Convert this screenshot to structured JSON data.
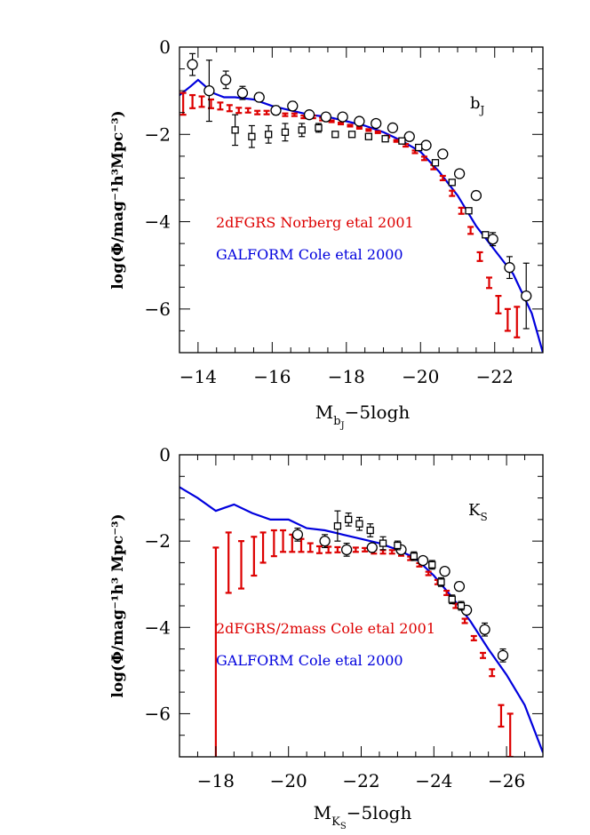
{
  "chart_data": [
    {
      "type": "line",
      "panel_label": "b",
      "panel_label_sub": "J",
      "xlabel_main": "M",
      "xlabel_sub": "b",
      "xlabel_subsub": "J",
      "xlabel_suffix": "−5logh",
      "ylabel": "log(Φ/mag⁻¹h³Mpc⁻³)",
      "xlim": [
        -13.5,
        -23.3
      ],
      "ylim": [
        -7,
        0
      ],
      "xticks": [
        -14,
        -16,
        -18,
        -20,
        -22
      ],
      "xtick_labels": [
        "−14",
        "−16",
        "−18",
        "−20",
        "−22"
      ],
      "yticks": [
        0,
        -2,
        -4,
        -6
      ],
      "ytick_labels": [
        "0",
        "−2",
        "−4",
        "−6"
      ],
      "annotations": [
        {
          "text": "2dFGRS Norberg etal 2001",
          "color": "#dd0000"
        },
        {
          "text": "GALFORM Cole etal 2000",
          "color": "#0000dd"
        }
      ],
      "series": [
        {
          "marker": "line",
          "color": "#0000dd",
          "x": [
            -13.5,
            -13.8,
            -14.0,
            -14.2,
            -14.4,
            -14.7,
            -15.0,
            -15.5,
            -16.0,
            -16.5,
            -17.0,
            -17.5,
            -18.0,
            -18.5,
            -19.0,
            -19.5,
            -20.0,
            -20.5,
            -21.0,
            -21.5,
            -22.0,
            -22.5,
            -23.0,
            -23.3
          ],
          "y": [
            -1.1,
            -0.9,
            -0.75,
            -0.9,
            -1.05,
            -1.15,
            -1.15,
            -1.2,
            -1.35,
            -1.45,
            -1.55,
            -1.6,
            -1.7,
            -1.8,
            -1.95,
            -2.15,
            -2.4,
            -2.85,
            -3.4,
            -4.1,
            -4.65,
            -5.2,
            -6.1,
            -7.0
          ]
        },
        {
          "marker": "errorbar",
          "color": "#dd0000",
          "x": [
            -13.6,
            -13.85,
            -14.1,
            -14.35,
            -14.6,
            -14.85,
            -15.1,
            -15.35,
            -15.6,
            -15.85,
            -16.1,
            -16.35,
            -16.6,
            -16.85,
            -17.1,
            -17.35,
            -17.6,
            -17.85,
            -18.1,
            -18.35,
            -18.6,
            -18.85,
            -19.1,
            -19.35,
            -19.6,
            -19.85,
            -20.1,
            -20.35,
            -20.6,
            -20.85,
            -21.1,
            -21.35,
            -21.6,
            -21.85,
            -22.1,
            -22.35,
            -22.6
          ],
          "y": [
            -1.3,
            -1.25,
            -1.25,
            -1.3,
            -1.35,
            -1.4,
            -1.45,
            -1.45,
            -1.5,
            -1.5,
            -1.5,
            -1.55,
            -1.55,
            -1.6,
            -1.6,
            -1.65,
            -1.7,
            -1.75,
            -1.8,
            -1.85,
            -1.9,
            -1.95,
            -2.05,
            -2.15,
            -2.25,
            -2.4,
            -2.55,
            -2.75,
            -3.0,
            -3.35,
            -3.75,
            -4.2,
            -4.8,
            -5.4,
            -5.9,
            -6.25,
            -6.3
          ],
          "err": [
            0.25,
            0.15,
            0.12,
            0.1,
            0.08,
            0.07,
            0.06,
            0.05,
            0.04,
            0.04,
            0.03,
            0.03,
            0.03,
            0.03,
            0.03,
            0.03,
            0.02,
            0.02,
            0.02,
            0.02,
            0.02,
            0.02,
            0.02,
            0.02,
            0.03,
            0.03,
            0.04,
            0.05,
            0.05,
            0.06,
            0.07,
            0.08,
            0.1,
            0.12,
            0.2,
            0.25,
            0.35
          ]
        },
        {
          "marker": "circle",
          "color": "#000000",
          "x": [
            -13.85,
            -14.3,
            -14.75,
            -15.2,
            -15.65,
            -16.1,
            -16.55,
            -17.0,
            -17.45,
            -17.9,
            -18.35,
            -18.8,
            -19.25,
            -19.7,
            -20.15,
            -20.6,
            -21.05,
            -21.5,
            -21.95,
            -22.4,
            -22.85
          ],
          "y": [
            -0.4,
            -1.0,
            -0.75,
            -1.05,
            -1.15,
            -1.45,
            -1.35,
            -1.55,
            -1.6,
            -1.6,
            -1.7,
            -1.75,
            -1.85,
            -2.05,
            -2.25,
            -2.45,
            -2.9,
            -3.4,
            -4.4,
            -5.05,
            -5.7
          ],
          "err": [
            0.25,
            0.7,
            0.2,
            0.15,
            0.1,
            0.1,
            0.1,
            0.05,
            0.05,
            0.05,
            0.05,
            0.05,
            0.05,
            0.05,
            0.05,
            0.05,
            0.08,
            0.1,
            0.15,
            0.25,
            0.75
          ]
        },
        {
          "marker": "square",
          "color": "#000000",
          "x": [
            -15.0,
            -15.45,
            -15.9,
            -16.35,
            -16.8,
            -17.25,
            -17.7,
            -18.15,
            -18.6,
            -19.05,
            -19.5,
            -19.95,
            -20.4,
            -20.85,
            -21.3,
            -21.75
          ],
          "y": [
            -1.9,
            -2.05,
            -2.0,
            -1.95,
            -1.9,
            -1.85,
            -2.0,
            -2.0,
            -2.05,
            -2.1,
            -2.15,
            -2.3,
            -2.65,
            -3.1,
            -3.75,
            -4.3
          ],
          "err": [
            0.35,
            0.25,
            0.2,
            0.2,
            0.15,
            0.1,
            0.05,
            0.05,
            0.05,
            0.05,
            0.05,
            0.05,
            0.05,
            0.05,
            0.05,
            0.05
          ]
        }
      ]
    },
    {
      "type": "line",
      "panel_label": "K",
      "panel_label_sub": "S",
      "xlabel_main": "M",
      "xlabel_sub": "K",
      "xlabel_subsub": "S",
      "xlabel_suffix": "−5logh",
      "ylabel": "log(Φ/mag⁻¹h³ Mpc⁻³)",
      "xlim": [
        -17,
        -27
      ],
      "ylim": [
        -7,
        0
      ],
      "xticks": [
        -18,
        -20,
        -22,
        -24,
        -26
      ],
      "xtick_labels": [
        "−18",
        "−20",
        "−22",
        "−24",
        "−26"
      ],
      "yticks": [
        0,
        -2,
        -4,
        -6
      ],
      "ytick_labels": [
        "0",
        "−2",
        "−4",
        "−6"
      ],
      "annotations": [
        {
          "text": "2dFGRS/2mass Cole etal 2001",
          "color": "#dd0000"
        },
        {
          "text": "GALFORM Cole etal 2000",
          "color": "#0000dd"
        }
      ],
      "series": [
        {
          "marker": "line",
          "color": "#0000dd",
          "x": [
            -17.0,
            -17.5,
            -18.0,
            -18.5,
            -19.0,
            -19.5,
            -20.0,
            -20.5,
            -21.0,
            -21.5,
            -22.0,
            -22.5,
            -23.0,
            -23.5,
            -24.0,
            -24.5,
            -25.0,
            -25.5,
            -26.0,
            -26.5,
            -27.0
          ],
          "y": [
            -0.75,
            -1.0,
            -1.3,
            -1.15,
            -1.35,
            -1.5,
            -1.5,
            -1.7,
            -1.75,
            -1.85,
            -1.95,
            -2.05,
            -2.2,
            -2.4,
            -2.8,
            -3.3,
            -3.85,
            -4.5,
            -5.1,
            -5.8,
            -6.9
          ]
        },
        {
          "marker": "errorbar",
          "color": "#dd0000",
          "x": [
            -18.0,
            -18.35,
            -18.7,
            -19.05,
            -19.3,
            -19.6,
            -19.85,
            -20.1,
            -20.35,
            -20.6,
            -20.85,
            -21.1,
            -21.35,
            -21.6,
            -21.85,
            -22.1,
            -22.35,
            -22.6,
            -22.85,
            -23.1,
            -23.35,
            -23.6,
            -23.85,
            -24.1,
            -24.35,
            -24.6,
            -24.85,
            -25.1,
            -25.35,
            -25.6,
            -25.85,
            -26.1
          ],
          "y": [
            -4.6,
            -2.5,
            -2.55,
            -2.35,
            -2.15,
            -2.05,
            -2.0,
            -2.05,
            -2.1,
            -2.15,
            -2.2,
            -2.2,
            -2.2,
            -2.2,
            -2.2,
            -2.2,
            -2.25,
            -2.25,
            -2.25,
            -2.3,
            -2.4,
            -2.55,
            -2.75,
            -2.95,
            -3.2,
            -3.5,
            -3.85,
            -4.25,
            -4.65,
            -5.05,
            -6.05,
            -6.5
          ],
          "err": [
            2.45,
            0.7,
            0.55,
            0.45,
            0.35,
            0.3,
            0.25,
            0.2,
            0.15,
            0.1,
            0.08,
            0.07,
            0.06,
            0.05,
            0.05,
            0.04,
            0.04,
            0.04,
            0.04,
            0.04,
            0.04,
            0.04,
            0.04,
            0.05,
            0.05,
            0.05,
            0.05,
            0.05,
            0.06,
            0.08,
            0.25,
            0.5
          ]
        },
        {
          "marker": "circle",
          "color": "#000000",
          "x": [
            -20.25,
            -21.0,
            -21.6,
            -22.3,
            -23.1,
            -23.7,
            -24.3,
            -24.7,
            -24.9,
            -25.4,
            -25.9
          ],
          "y": [
            -1.85,
            -2.0,
            -2.2,
            -2.15,
            -2.2,
            -2.45,
            -2.7,
            -3.05,
            -3.6,
            -4.05,
            -4.65
          ],
          "err": [
            0.15,
            0.15,
            0.15,
            0.1,
            0.05,
            0.05,
            0.05,
            0.1,
            0.1,
            0.15,
            0.15
          ]
        },
        {
          "marker": "square",
          "color": "#000000",
          "x": [
            -21.35,
            -21.65,
            -21.95,
            -22.25,
            -22.6,
            -23.0,
            -23.45,
            -23.95,
            -24.2,
            -24.5,
            -24.75
          ],
          "y": [
            -1.65,
            -1.5,
            -1.6,
            -1.75,
            -2.05,
            -2.1,
            -2.35,
            -2.55,
            -2.95,
            -3.35,
            -3.5
          ],
          "err": [
            0.35,
            0.15,
            0.15,
            0.15,
            0.15,
            0.1,
            0.1,
            0.1,
            0.1,
            0.1,
            0.1
          ]
        }
      ]
    }
  ]
}
